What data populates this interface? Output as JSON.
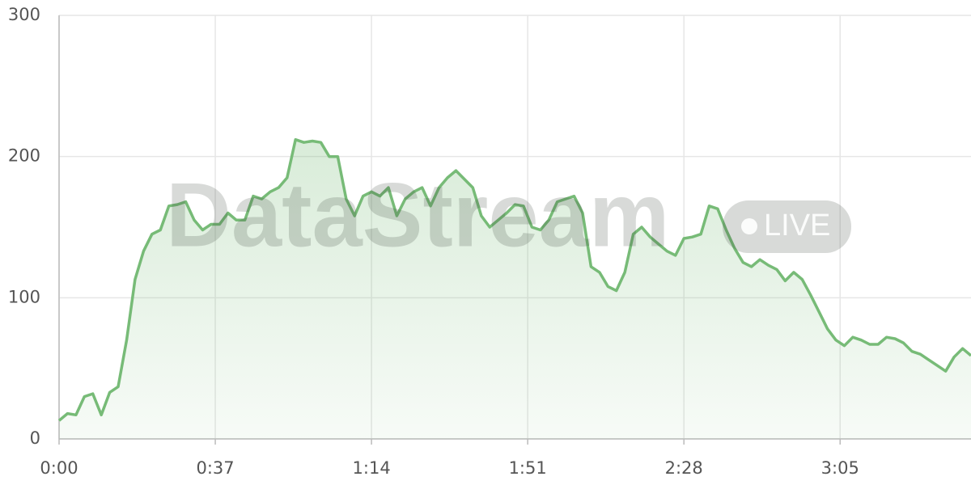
{
  "chart_data": {
    "type": "line",
    "watermark": "DataStream",
    "badge": "LIVE",
    "x": [
      0,
      2,
      4,
      6,
      8,
      10,
      12,
      14,
      16,
      18,
      20,
      22,
      24,
      26,
      28,
      30,
      32,
      34,
      36,
      38,
      40,
      42,
      44,
      46,
      48,
      50,
      52,
      54,
      56,
      58,
      60,
      62,
      64,
      66,
      68,
      70,
      72,
      74,
      76,
      78,
      80,
      82,
      84,
      86,
      88,
      90,
      92,
      94,
      96,
      98,
      100,
      102,
      104,
      106,
      108,
      110,
      112,
      114,
      116,
      118,
      120,
      122,
      124,
      126,
      128,
      130,
      132,
      134,
      136,
      138,
      140,
      142,
      144,
      146,
      148,
      150,
      152,
      154,
      156,
      158,
      160,
      162,
      164,
      166,
      168,
      170,
      172,
      174,
      176,
      178,
      180,
      182,
      184,
      186,
      188,
      190,
      192,
      194,
      196,
      198,
      200,
      202,
      204,
      206,
      208,
      210,
      212,
      214,
      216
    ],
    "series": [
      {
        "color": "#77bb77",
        "values": [
          13,
          18,
          17,
          30,
          32,
          17,
          33,
          37,
          70,
          113,
          133,
          145,
          148,
          165,
          166,
          168,
          155,
          148,
          152,
          152,
          160,
          155,
          155,
          172,
          170,
          175,
          178,
          185,
          212,
          210,
          211,
          210,
          200,
          200,
          170,
          158,
          172,
          175,
          172,
          178,
          158,
          170,
          175,
          178,
          165,
          178,
          185,
          190,
          184,
          178,
          158,
          150,
          155,
          160,
          166,
          165,
          150,
          148,
          155,
          168,
          170,
          172,
          160,
          122,
          118,
          108,
          105,
          118,
          145,
          150,
          143,
          138,
          133,
          130,
          142,
          143,
          145,
          165,
          163,
          148,
          135,
          125,
          122,
          127,
          123,
          120,
          112,
          118,
          113,
          102,
          90,
          78,
          70,
          66,
          72,
          70,
          67,
          67,
          72,
          71,
          68,
          62,
          60,
          56,
          52,
          48,
          58,
          64,
          59
        ]
      }
    ],
    "xlim": [
      0,
      216
    ],
    "xticks": [
      {
        "value": 0,
        "label": "0:00"
      },
      {
        "value": 37,
        "label": "0:37"
      },
      {
        "value": 74,
        "label": "1:14"
      },
      {
        "value": 111,
        "label": "1:51"
      },
      {
        "value": 148,
        "label": "2:28"
      },
      {
        "value": 185,
        "label": "3:05"
      }
    ],
    "ylim": [
      0,
      300
    ],
    "yticks": [
      0,
      100,
      200,
      300
    ],
    "grid": true
  }
}
